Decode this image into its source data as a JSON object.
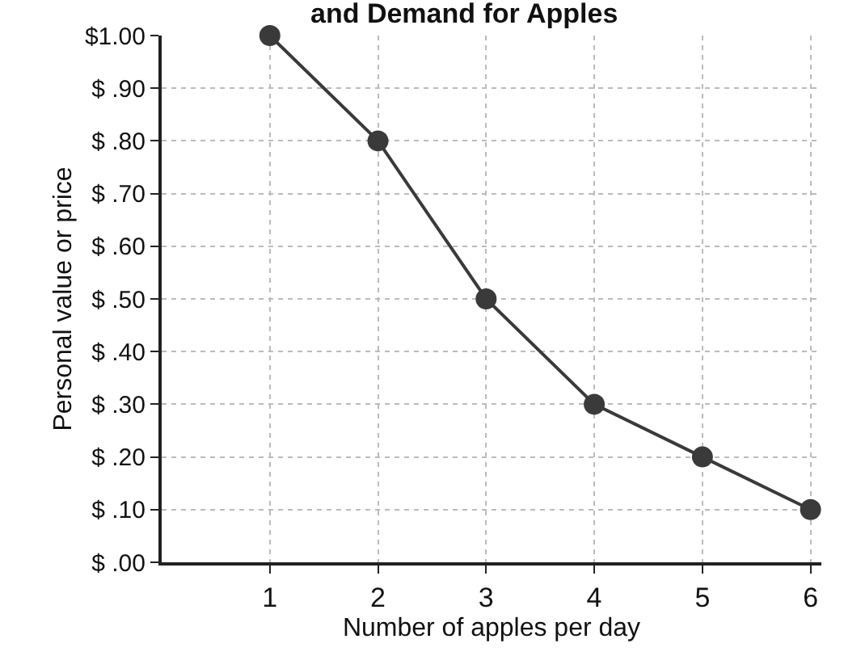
{
  "chart_data": {
    "type": "line",
    "title": "and Demand for Apples",
    "xlabel": "Number of apples per day",
    "ylabel": "Personal value or price",
    "x": [
      1,
      2,
      3,
      4,
      5,
      6
    ],
    "series": [
      {
        "color": "#3a3a3a",
        "values": [
          1.0,
          0.8,
          0.5,
          0.3,
          0.2,
          0.1
        ]
      }
    ],
    "xlim": [
      0,
      6.1
    ],
    "xticks": [
      1,
      2,
      3,
      4,
      5,
      6
    ],
    "ylim": [
      0,
      1.0
    ],
    "yticks": [
      {
        "value": 0,
        "label": "$ .00"
      },
      {
        "value": 0.1,
        "label": "$ .10"
      },
      {
        "value": 0.2,
        "label": "$ .20"
      },
      {
        "value": 0.3,
        "label": "$ .30"
      },
      {
        "value": 0.4,
        "label": "$ .40"
      },
      {
        "value": 0.5,
        "label": "$ .50"
      },
      {
        "value": 0.6,
        "label": "$ .60"
      },
      {
        "value": 0.7,
        "label": "$ .70"
      },
      {
        "value": 0.8,
        "label": "$ .80"
      },
      {
        "value": 0.9,
        "label": "$ .90"
      },
      {
        "value": 1.0,
        "label": "$1.00"
      }
    ],
    "grid": true,
    "marker": "circle",
    "line_style": "solid"
  }
}
